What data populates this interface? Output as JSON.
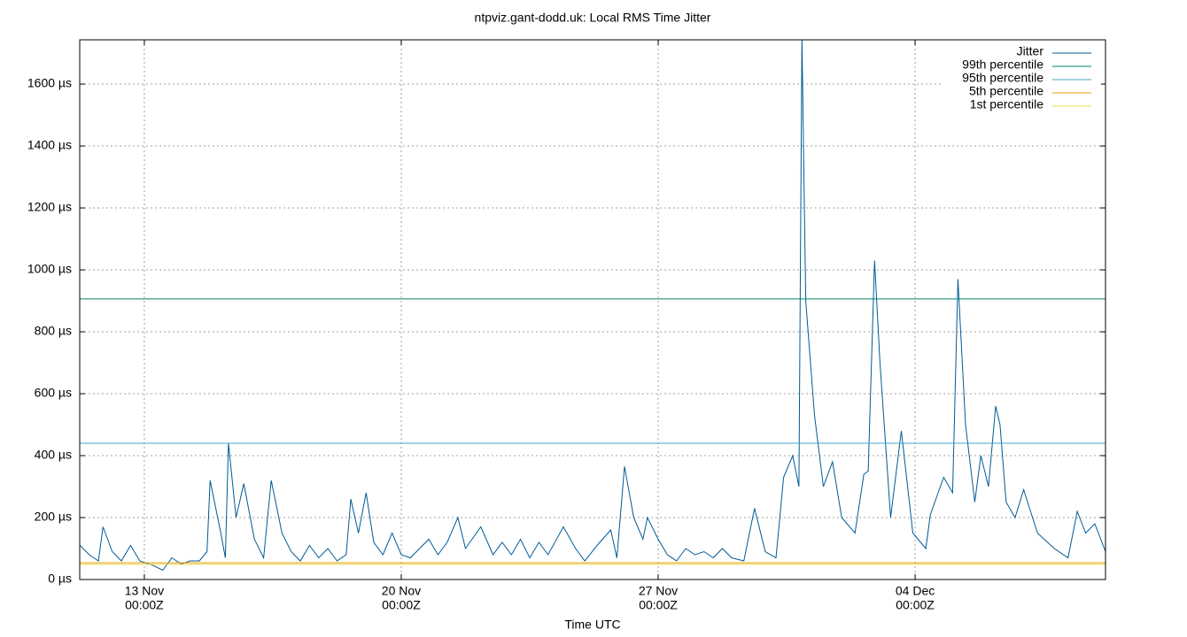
{
  "chart_data": {
    "type": "line",
    "title": "ntpviz.gant-dodd.uk: Local RMS Time Jitter",
    "x_label": "Time UTC",
    "xlim": [
      "11-11 05:45",
      "12-09 04:30"
    ],
    "xticks": [
      {
        "value": "11-13 00:00",
        "label": [
          "13 Nov",
          "00:00Z"
        ]
      },
      {
        "value": "11-20 00:00",
        "label": [
          "20 Nov",
          "00:00Z"
        ]
      },
      {
        "value": "11-27 00:00",
        "label": [
          "27 Nov",
          "00:00Z"
        ]
      },
      {
        "value": "12-04 00:00",
        "label": [
          "04 Dec",
          "00:00Z"
        ]
      }
    ],
    "ylim": [
      0,
      1743
    ],
    "yticks": [
      {
        "value": 0,
        "label": "0 µs"
      },
      {
        "value": 200,
        "label": "200 µs"
      },
      {
        "value": 400,
        "label": "400 µs"
      },
      {
        "value": 600,
        "label": "600 µs"
      },
      {
        "value": 800,
        "label": "800 µs"
      },
      {
        "value": 1000,
        "label": "1000 µs"
      },
      {
        "value": 1200,
        "label": "1200 µs"
      },
      {
        "value": 1400,
        "label": "1400 µs"
      },
      {
        "value": 1600,
        "label": "1600 µs"
      }
    ],
    "grid": true,
    "legend": "top-right",
    "x": [
      "11-11 06:00",
      "11-11 12:00",
      "11-11 18:00",
      "11-11 21:00",
      "11-12 03:00",
      "11-12 09:00",
      "11-12 15:00",
      "11-12 21:00",
      "11-13 06:00",
      "11-13 12:00",
      "11-13 18:00",
      "11-14 00:00",
      "11-14 06:00",
      "11-14 12:00",
      "11-14 17:00",
      "11-14 19:00",
      "11-15 02:00",
      "11-15 05:00",
      "11-15 07:00",
      "11-15 12:00",
      "11-15 17:00",
      "11-16 00:00",
      "11-16 06:00",
      "11-16 11:00",
      "11-16 18:00",
      "11-17 00:00",
      "11-17 06:00",
      "11-17 12:00",
      "11-17 18:00",
      "11-18 00:00",
      "11-18 06:00",
      "11-18 12:00",
      "11-18 15:00",
      "11-18 20:00",
      "11-19 01:00",
      "11-19 06:00",
      "11-19 12:00",
      "11-19 18:00",
      "11-20 00:00",
      "11-20 06:00",
      "11-20 12:00",
      "11-20 18:00",
      "11-21 00:00",
      "11-21 06:00",
      "11-21 13:00",
      "11-21 18:00",
      "11-22 04:00",
      "11-22 12:00",
      "11-22 18:00",
      "11-23 00:00",
      "11-23 06:00",
      "11-23 12:00",
      "11-23 18:00",
      "11-24 00:00",
      "11-24 10:00",
      "11-24 18:00",
      "11-25 00:00",
      "11-25 08:00",
      "11-25 17:00",
      "11-25 21:00",
      "11-26 02:00",
      "11-26 08:00",
      "11-26 14:00",
      "11-26 17:00",
      "11-27 00:00",
      "11-27 06:00",
      "11-27 12:00",
      "11-27 18:00",
      "11-28 00:00",
      "11-28 06:00",
      "11-28 12:00",
      "11-28 18:00",
      "11-29 00:00",
      "11-29 08:00",
      "11-29 15:00",
      "11-29 22:00",
      "11-30 05:00",
      "11-30 10:00",
      "11-30 16:00",
      "11-30 20:00",
      "11-30 22:00",
      "12-01 00:30",
      "12-01 06:15",
      "12-01 12:00",
      "12-01 18:00",
      "12-02 00:00",
      "12-02 08:40",
      "12-02 14:30",
      "12-02 17:20",
      "12-02 21:30",
      "12-03 01:00",
      "12-03 08:00",
      "12-03 15:00",
      "12-03 22:30",
      "12-04 07:00",
      "12-04 10:00",
      "12-04 18:40",
      "12-05 00:30",
      "12-05 04:00",
      "12-05 09:00",
      "12-05 15:00",
      "12-05 19:00",
      "12-06 00:00",
      "12-06 04:40",
      "12-06 07:30",
      "12-06 11:30",
      "12-06 17:20",
      "12-06 23:00",
      "12-07 08:00",
      "12-07 19:00",
      "12-08 04:00",
      "12-08 10:00",
      "12-08 15:30",
      "12-08 21:30",
      "12-09 04:30"
    ],
    "series": [
      {
        "name": "Jitter",
        "color": "#005a96",
        "values": [
          110,
          80,
          60,
          170,
          90,
          60,
          110,
          60,
          45,
          30,
          70,
          50,
          60,
          60,
          90,
          320,
          150,
          70,
          440,
          200,
          310,
          130,
          70,
          320,
          150,
          90,
          60,
          110,
          70,
          100,
          60,
          80,
          260,
          150,
          280,
          120,
          80,
          150,
          80,
          70,
          100,
          130,
          80,
          120,
          200,
          100,
          170,
          80,
          120,
          80,
          130,
          70,
          120,
          80,
          170,
          100,
          60,
          110,
          160,
          70,
          365,
          200,
          130,
          200,
          130,
          80,
          60,
          100,
          80,
          90,
          70,
          100,
          70,
          60,
          230,
          90,
          70,
          330,
          400,
          300,
          1750,
          900,
          530,
          300,
          380,
          200,
          150,
          340,
          350,
          1030,
          700,
          200,
          480,
          150,
          100,
          210,
          330,
          280,
          970,
          500,
          250,
          400,
          300,
          560,
          500,
          250,
          200,
          290,
          150,
          100,
          70,
          220,
          150,
          180,
          90
        ]
      },
      {
        "name": "99th percentile",
        "color": "#00876c",
        "value": 906
      },
      {
        "name": "95th percentile",
        "color": "#4aa3c9",
        "value": 440
      },
      {
        "name": "5th percentile",
        "color": "#e69f00",
        "value": 54
      },
      {
        "name": "1st percentile",
        "color": "#e8d84a",
        "value": 49
      }
    ]
  }
}
